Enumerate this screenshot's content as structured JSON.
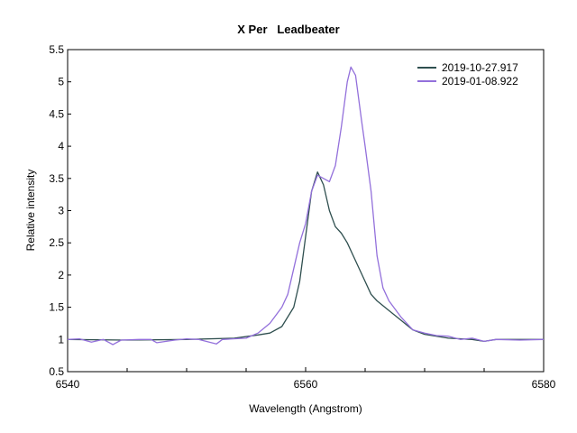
{
  "chart_data": {
    "type": "line",
    "title": "X Per   Leadbeater",
    "xlabel": "Wavelength (Angstrom)",
    "ylabel": "Relative intensity",
    "xlim": [
      6540,
      6580
    ],
    "ylim": [
      0.5,
      5.5
    ],
    "xticks": [
      6540,
      6560,
      6580
    ],
    "xminor": [
      6545,
      6550,
      6555,
      6565,
      6570,
      6575
    ],
    "yticks": [
      "0.5",
      "1",
      "1.5",
      "2",
      "2.5",
      "3",
      "3.5",
      "4",
      "4.5",
      "5",
      "5.5"
    ],
    "grid": false,
    "legend_position": "top-right",
    "series": [
      {
        "name": "2019-10-27.917",
        "color": "#2f4f4f",
        "x": [
          6540,
          6545,
          6550,
          6554,
          6556,
          6557,
          6558,
          6559,
          6559.5,
          6560,
          6560.5,
          6561,
          6561.5,
          6562,
          6562.5,
          6563,
          6563.5,
          6564,
          6565,
          6565.5,
          6566,
          6567,
          6568,
          6569,
          6570,
          6572,
          6574,
          6575,
          6576,
          6580
        ],
        "y": [
          1.0,
          0.99,
          1.0,
          1.02,
          1.07,
          1.1,
          1.2,
          1.5,
          1.9,
          2.6,
          3.3,
          3.6,
          3.4,
          3.0,
          2.75,
          2.65,
          2.5,
          2.3,
          1.9,
          1.7,
          1.6,
          1.45,
          1.3,
          1.15,
          1.08,
          1.02,
          1.0,
          0.97,
          1.0,
          1.0
        ]
      },
      {
        "name": "2019-01-08.922",
        "color": "#9370db",
        "x": [
          6540,
          6541,
          6542,
          6543,
          6543.8,
          6544.5,
          6546,
          6547,
          6547.5,
          6549,
          6550,
          6551,
          6552.5,
          6553,
          6555,
          6556,
          6557,
          6558,
          6558.5,
          6559,
          6559.5,
          6560,
          6560.5,
          6561,
          6561.5,
          6562,
          6562.5,
          6563,
          6563.5,
          6563.8,
          6564.2,
          6564.7,
          6565,
          6565.5,
          6566,
          6566.5,
          6567,
          6568,
          6569,
          6570,
          6571,
          6572,
          6573,
          6574,
          6575,
          6576,
          6578,
          6580
        ],
        "y": [
          1.0,
          1.01,
          0.96,
          1.0,
          0.92,
          0.99,
          1.0,
          1.0,
          0.95,
          0.99,
          1.01,
          1.0,
          0.93,
          1.0,
          1.02,
          1.1,
          1.25,
          1.5,
          1.7,
          2.1,
          2.5,
          2.8,
          3.3,
          3.55,
          3.5,
          3.45,
          3.7,
          4.3,
          5.0,
          5.23,
          5.1,
          4.4,
          4.0,
          3.3,
          2.3,
          1.8,
          1.6,
          1.35,
          1.15,
          1.1,
          1.06,
          1.05,
          1.0,
          1.02,
          0.97,
          1.0,
          0.99,
          1.0
        ]
      }
    ]
  }
}
